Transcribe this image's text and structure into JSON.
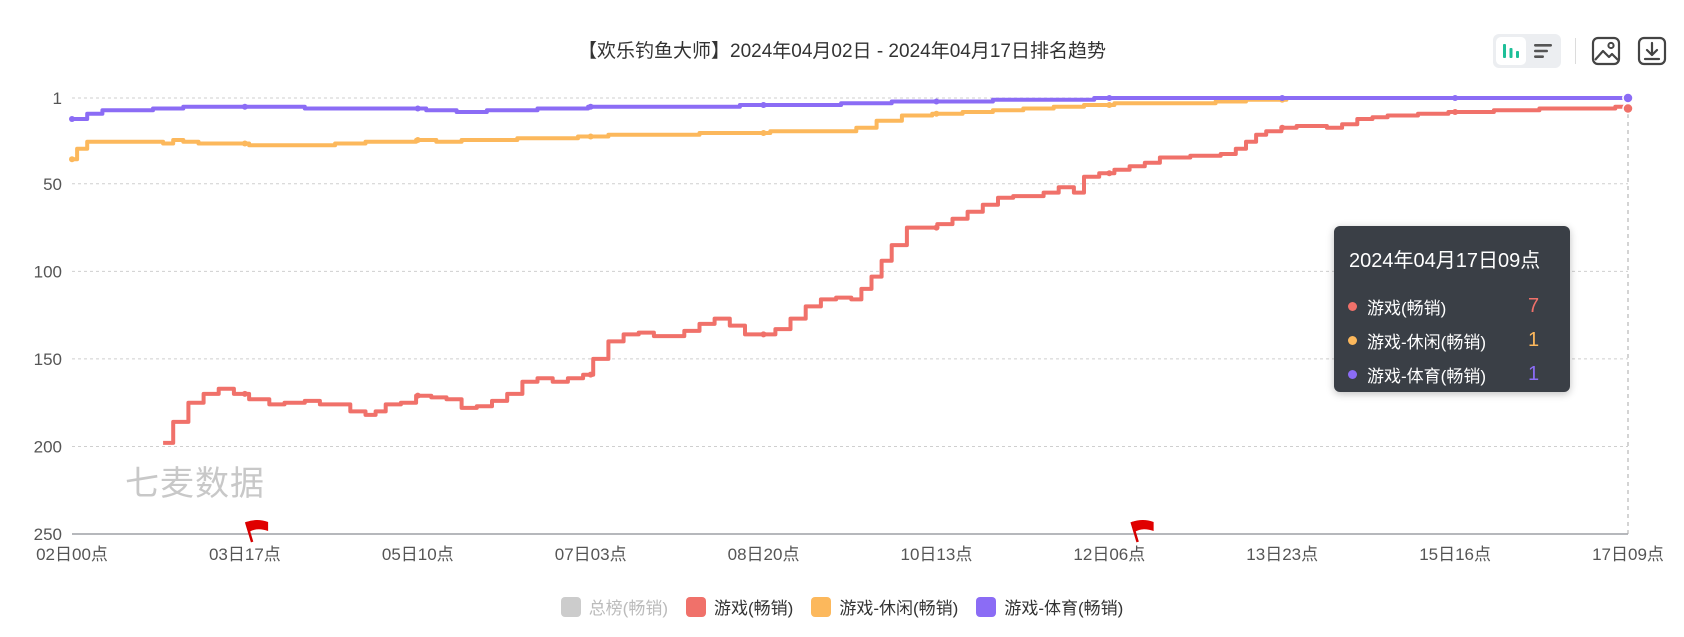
{
  "chart_data": {
    "type": "line",
    "title": "【欢乐钓鱼大师】2024年04月02日 - 2024年04月17日排名趋势",
    "y_inverted": true,
    "ylim": [
      1,
      250
    ],
    "y_ticks": [
      "1",
      "50",
      "100",
      "150",
      "200",
      "250"
    ],
    "x_start": "2024-04-02 00:00",
    "x_end": "2024-04-17 09:00",
    "x_ticks": [
      "02日00点",
      "03日17点",
      "05日10点",
      "07日03点",
      "08日20点",
      "10日13点",
      "12日06点",
      "13日23点",
      "15日16点",
      "17日09点"
    ],
    "grid": true,
    "legend_position": "bottom",
    "series": [
      {
        "name": "总榜(畅销)",
        "color": "#cccccc",
        "visible": false,
        "points": []
      },
      {
        "name": "游戏(畅销)",
        "color": "#f0716a",
        "visible": true,
        "points": [
          [
            0.9,
            198
          ],
          [
            1.0,
            186
          ],
          [
            1.15,
            175
          ],
          [
            1.3,
            170
          ],
          [
            1.45,
            167
          ],
          [
            1.6,
            170
          ],
          [
            1.75,
            173
          ],
          [
            1.95,
            176
          ],
          [
            2.1,
            175
          ],
          [
            2.3,
            174
          ],
          [
            2.45,
            176
          ],
          [
            2.6,
            176
          ],
          [
            2.75,
            180
          ],
          [
            2.9,
            182
          ],
          [
            3.0,
            180
          ],
          [
            3.1,
            176
          ],
          [
            3.25,
            175
          ],
          [
            3.4,
            171
          ],
          [
            3.55,
            172
          ],
          [
            3.7,
            173
          ],
          [
            3.85,
            178
          ],
          [
            4.0,
            177
          ],
          [
            4.15,
            174
          ],
          [
            4.3,
            170
          ],
          [
            4.45,
            163
          ],
          [
            4.6,
            161
          ],
          [
            4.75,
            163
          ],
          [
            4.9,
            161
          ],
          [
            5.05,
            159
          ],
          [
            5.15,
            150
          ],
          [
            5.3,
            140
          ],
          [
            5.45,
            136
          ],
          [
            5.6,
            135
          ],
          [
            5.75,
            137
          ],
          [
            5.9,
            137
          ],
          [
            6.05,
            134
          ],
          [
            6.2,
            130
          ],
          [
            6.35,
            127
          ],
          [
            6.5,
            131
          ],
          [
            6.65,
            136
          ],
          [
            6.8,
            136
          ],
          [
            6.95,
            133
          ],
          [
            7.1,
            127
          ],
          [
            7.25,
            120
          ],
          [
            7.4,
            116
          ],
          [
            7.55,
            115
          ],
          [
            7.7,
            116
          ],
          [
            7.8,
            110
          ],
          [
            7.9,
            103
          ],
          [
            8.0,
            94
          ],
          [
            8.1,
            85
          ],
          [
            8.25,
            75
          ],
          [
            8.4,
            75
          ],
          [
            8.55,
            73
          ],
          [
            8.7,
            70
          ],
          [
            8.85,
            66
          ],
          [
            9.0,
            62
          ],
          [
            9.15,
            58
          ],
          [
            9.3,
            57
          ],
          [
            9.45,
            57
          ],
          [
            9.6,
            55
          ],
          [
            9.75,
            52
          ],
          [
            9.9,
            55
          ],
          [
            10.0,
            46
          ],
          [
            10.15,
            44
          ],
          [
            10.3,
            42
          ],
          [
            10.45,
            40
          ],
          [
            10.6,
            38
          ],
          [
            10.75,
            35
          ],
          [
            10.9,
            35
          ],
          [
            11.05,
            34
          ],
          [
            11.2,
            34
          ],
          [
            11.35,
            33
          ],
          [
            11.5,
            30
          ],
          [
            11.6,
            26
          ],
          [
            11.7,
            22
          ],
          [
            11.8,
            20
          ],
          [
            11.95,
            18
          ],
          [
            12.1,
            17
          ],
          [
            12.25,
            17
          ],
          [
            12.4,
            18
          ],
          [
            12.55,
            16
          ],
          [
            12.7,
            13
          ],
          [
            12.85,
            12
          ],
          [
            13.0,
            11
          ],
          [
            13.15,
            11
          ],
          [
            13.3,
            10
          ],
          [
            13.45,
            10
          ],
          [
            13.6,
            9
          ],
          [
            13.75,
            9
          ],
          [
            13.9,
            9
          ],
          [
            14.05,
            8
          ],
          [
            14.2,
            8
          ],
          [
            14.35,
            8
          ],
          [
            14.5,
            7
          ],
          [
            14.6,
            7
          ],
          [
            14.7,
            7
          ],
          [
            14.8,
            7
          ],
          [
            14.9,
            7
          ],
          [
            15.0,
            7
          ],
          [
            15.1,
            7
          ],
          [
            15.2,
            7
          ],
          [
            15.25,
            6
          ],
          [
            15.375,
            7
          ]
        ]
      },
      {
        "name": "游戏-休闲(畅销)",
        "color": "#fcb85c",
        "visible": true,
        "points": [
          [
            0.0,
            36
          ],
          [
            0.05,
            30
          ],
          [
            0.15,
            26
          ],
          [
            0.3,
            26
          ],
          [
            0.6,
            26
          ],
          [
            0.9,
            27
          ],
          [
            1.0,
            25
          ],
          [
            1.1,
            26
          ],
          [
            1.25,
            27
          ],
          [
            1.5,
            27
          ],
          [
            1.75,
            28
          ],
          [
            2.0,
            28
          ],
          [
            2.3,
            28
          ],
          [
            2.6,
            27
          ],
          [
            2.9,
            26
          ],
          [
            3.2,
            26
          ],
          [
            3.4,
            25
          ],
          [
            3.6,
            26
          ],
          [
            3.85,
            25
          ],
          [
            4.1,
            25
          ],
          [
            4.4,
            24
          ],
          [
            4.7,
            24
          ],
          [
            5.0,
            23
          ],
          [
            5.3,
            22
          ],
          [
            5.6,
            22
          ],
          [
            5.9,
            22
          ],
          [
            6.2,
            21
          ],
          [
            6.5,
            21
          ],
          [
            6.75,
            21
          ],
          [
            6.9,
            20
          ],
          [
            7.2,
            20
          ],
          [
            7.5,
            20
          ],
          [
            7.75,
            18
          ],
          [
            7.95,
            14
          ],
          [
            8.2,
            11
          ],
          [
            8.5,
            10
          ],
          [
            8.8,
            9
          ],
          [
            9.1,
            8
          ],
          [
            9.4,
            7
          ],
          [
            9.7,
            6
          ],
          [
            10.0,
            5
          ],
          [
            10.3,
            4
          ],
          [
            10.6,
            4
          ],
          [
            11.0,
            4
          ],
          [
            11.3,
            3
          ],
          [
            11.6,
            2
          ],
          [
            12.0,
            1
          ],
          [
            12.6,
            1
          ],
          [
            13.2,
            1
          ]
        ]
      },
      {
        "name": "游戏-体育(畅销)",
        "color": "#8b6cf5",
        "visible": true,
        "points": [
          [
            0.0,
            13
          ],
          [
            0.15,
            10
          ],
          [
            0.3,
            8
          ],
          [
            0.5,
            8
          ],
          [
            0.8,
            7
          ],
          [
            1.1,
            6
          ],
          [
            1.5,
            6
          ],
          [
            1.9,
            6
          ],
          [
            2.3,
            7
          ],
          [
            2.7,
            7
          ],
          [
            3.1,
            7
          ],
          [
            3.5,
            8
          ],
          [
            3.8,
            9
          ],
          [
            4.1,
            8
          ],
          [
            4.6,
            7
          ],
          [
            5.1,
            6
          ],
          [
            5.6,
            6
          ],
          [
            6.1,
            6
          ],
          [
            6.6,
            5
          ],
          [
            7.1,
            5
          ],
          [
            7.6,
            4
          ],
          [
            8.1,
            3
          ],
          [
            8.6,
            3
          ],
          [
            9.1,
            2
          ],
          [
            9.6,
            2
          ],
          [
            10.1,
            1
          ],
          [
            10.6,
            1
          ],
          [
            11.2,
            1
          ],
          [
            11.8,
            1
          ],
          [
            12.4,
            1
          ],
          [
            13.0,
            1
          ],
          [
            13.6,
            1
          ],
          [
            14.2,
            1
          ],
          [
            14.8,
            1
          ],
          [
            15.375,
            1
          ]
        ]
      }
    ],
    "event_flags_x": [
      1.75,
      10.5
    ],
    "hover_x": 15.375
  },
  "toolbar": {
    "chart_mode_icon": "bar-chart-icon",
    "list_mode_icon": "list-icon",
    "save_image_icon": "image-icon",
    "download_icon": "download-icon",
    "accent": "#1dbf98"
  },
  "tooltip": {
    "title": "2024年04月17日09点",
    "rows": [
      {
        "name": "游戏(畅销)",
        "value": "7",
        "color": "#f0716a"
      },
      {
        "name": "游戏-休闲(畅销)",
        "value": "1",
        "color": "#fcb85c"
      },
      {
        "name": "游戏-体育(畅销)",
        "value": "1",
        "color": "#8b6cf5"
      }
    ]
  },
  "watermark": "七麦数据",
  "legend": [
    {
      "label": "总榜(畅销)",
      "color": "#cccccc",
      "active": false
    },
    {
      "label": "游戏(畅销)",
      "color": "#f0716a",
      "active": true
    },
    {
      "label": "游戏-休闲(畅销)",
      "color": "#fcb85c",
      "active": true
    },
    {
      "label": "游戏-体育(畅销)",
      "color": "#8b6cf5",
      "active": true
    }
  ]
}
